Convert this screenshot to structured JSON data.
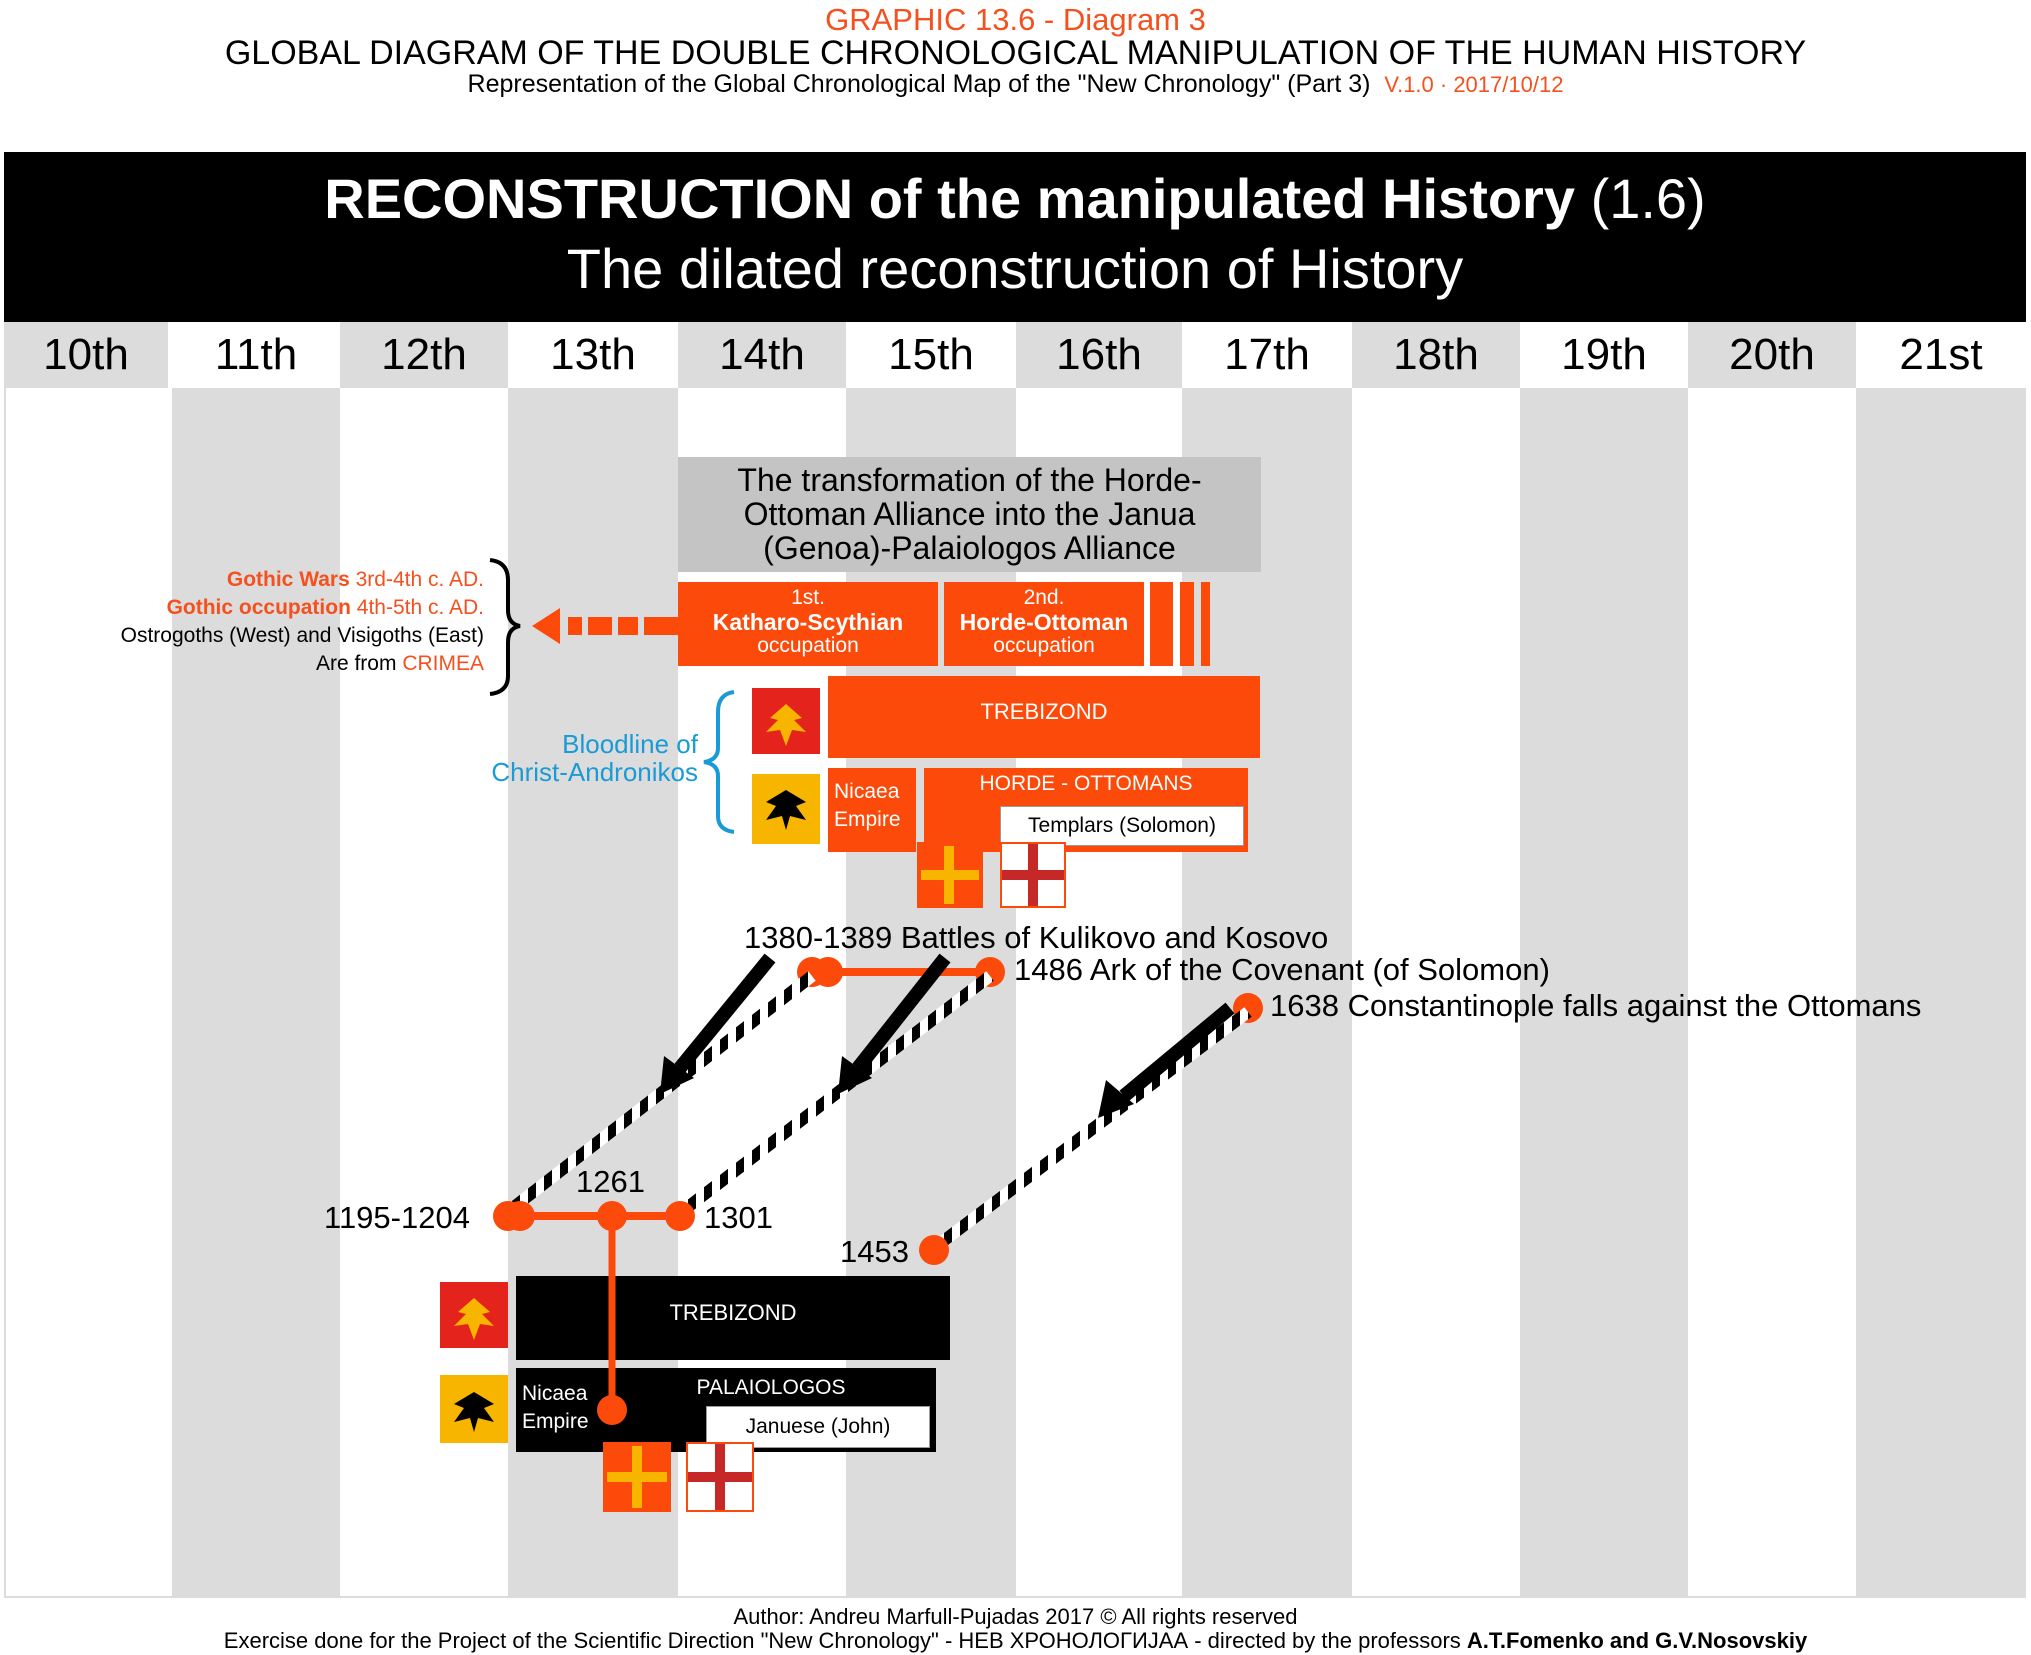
{
  "header": {
    "graphic_label": "GRAPHIC 13.6 - Diagram 3",
    "title": "GLOBAL DIAGRAM OF THE DOUBLE CHRONOLOGICAL MANIPULATION OF THE HUMAN HISTORY",
    "subtitle": "Representation of the Global Chronological Map of the \"New Chronology\" (Part 3)",
    "version": "V.1.0  ·  2017/10/12"
  },
  "banner": {
    "title": "RECONSTRUCTION of the manipulated History",
    "number": "(1.6)",
    "subtitle": "The dilated reconstruction of History"
  },
  "centuries": [
    "10th",
    "11th",
    "12th",
    "13th",
    "14th",
    "15th",
    "16th",
    "17th",
    "18th",
    "19th",
    "20th",
    "21st"
  ],
  "upper": {
    "transformation": "The transformation of the Horde-Ottoman Alliance into the Janua (Genoa)-Palaiologos Alliance",
    "occupation1": {
      "num": "1st.",
      "name": "Katharo-Scythian",
      "word": "occupation"
    },
    "occupation2": {
      "num": "2nd.",
      "name": "Horde-Ottoman",
      "word": "occupation"
    },
    "gothic": {
      "wars_bold": "Gothic Wars",
      "wars_rest": "3rd-4th c. AD.",
      "occ_bold": "Gothic occupation",
      "occ_rest": "4th-5th c. AD.",
      "line3": "Ostrogoths (West) and Visigoths (East)",
      "line4_pre": "Are from",
      "line4_em": "CRIMEA"
    },
    "bloodline": {
      "line1": "Bloodline of",
      "line2": "Christ-Andronikos"
    },
    "trebizond": "TREBIZOND",
    "nicaea": {
      "line1": "Nicaea",
      "line2": "Empire"
    },
    "horde_ottomans": "HORDE - OTTOMANS",
    "templars": "Templars (Solomon)"
  },
  "events": {
    "kulikovo": "1380-1389 Battles of Kulikovo and Kosovo",
    "ark": "1486 Ark of the Covenant (of Solomon)",
    "constantinople": "1638 Constantinople falls against the Ottomans",
    "y1195": "1195-1204",
    "y1261": "1261",
    "y1301": "1301",
    "y1453": "1453"
  },
  "lower": {
    "trebizond": "TREBIZOND",
    "nicaea": {
      "line1": "Nicaea",
      "line2": "Empire"
    },
    "palaiologos": "PALAIOLOGOS",
    "januese": "Januese (John)"
  },
  "footer": {
    "author": "Author: Andreu Marfull-Pujadas 2017 © All rights reserved",
    "exercise": "Exercise done for the Project of the Scientific Direction \"New Chronology\" - НЕВ ХРОНОЛОГИЈАА - directed by the professors",
    "professors": "A.T.Fomenko and G.V.Nosovskiy"
  },
  "colors": {
    "accent": "#fc4a0a",
    "blue": "#1a9ad6",
    "gray": "#dcdcdc",
    "black": "#000000"
  }
}
